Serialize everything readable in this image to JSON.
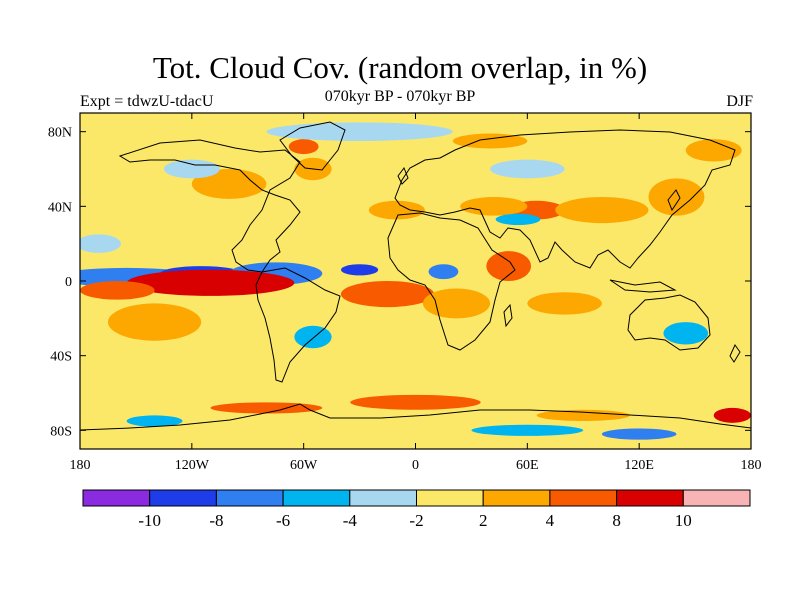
{
  "header": {
    "title": "Tot. Cloud Cov. (random overlap, in %)",
    "left": "Expt = tdwzU-tdacU",
    "center": "070kyr BP - 070kyr BP",
    "right": "DJF"
  },
  "chart_data": {
    "type": "heatmap",
    "projection": "cylindrical-equidistant",
    "x_range": [
      -180,
      180
    ],
    "y_range": [
      -90,
      90
    ],
    "x_ticks": [
      {
        "value": -180,
        "label": "180"
      },
      {
        "value": -120,
        "label": "120W"
      },
      {
        "value": -60,
        "label": "60W"
      },
      {
        "value": 0,
        "label": "0"
      },
      {
        "value": 60,
        "label": "60E"
      },
      {
        "value": 120,
        "label": "120E"
      },
      {
        "value": 180,
        "label": "180"
      }
    ],
    "y_ticks": [
      {
        "value": 80,
        "label": "80N"
      },
      {
        "value": 40,
        "label": "40N"
      },
      {
        "value": 0,
        "label": "0"
      },
      {
        "value": -40,
        "label": "40S"
      },
      {
        "value": -80,
        "label": "80S"
      }
    ],
    "colorbar": {
      "colors": [
        "#8a2be2",
        "#1e3ce8",
        "#2f7ff0",
        "#00b4f0",
        "#a8d8f0",
        "#fce868",
        "#fca800",
        "#f85a00",
        "#d80000",
        "#f8b4b4"
      ],
      "labels": [
        {
          "after_box": 1,
          "label": "-10"
        },
        {
          "after_box": 2,
          "label": "-8"
        },
        {
          "after_box": 3,
          "label": "-6"
        },
        {
          "after_box": 4,
          "label": "-4"
        },
        {
          "after_box": 5,
          "label": "-2"
        },
        {
          "after_box": 6,
          "label": "2"
        },
        {
          "after_box": 7,
          "label": "4"
        },
        {
          "after_box": 8,
          "label": "8"
        },
        {
          "after_box": 9,
          "label": "10"
        }
      ]
    },
    "background_level": 5,
    "anomalies": [
      {
        "lon": -155,
        "lat": 2,
        "rlon": 40,
        "rlat": 5,
        "level": 2
      },
      {
        "lon": -115,
        "lat": 4,
        "rlon": 22,
        "rlat": 4,
        "level": 1
      },
      {
        "lon": -75,
        "lat": 4,
        "rlon": 25,
        "rlat": 6,
        "level": 2
      },
      {
        "lon": -30,
        "lat": 6,
        "rlon": 10,
        "rlat": 3,
        "level": 1
      },
      {
        "lon": 15,
        "lat": 5,
        "rlon": 8,
        "rlat": 4,
        "level": 2
      },
      {
        "lon": -115,
        "lat": -2,
        "rlon": 30,
        "rlat": 3,
        "level": 9
      },
      {
        "lon": -110,
        "lat": -1,
        "rlon": 45,
        "rlat": 7,
        "level": 8
      },
      {
        "lon": -160,
        "lat": -5,
        "rlon": 20,
        "rlat": 5,
        "level": 7
      },
      {
        "lon": -15,
        "lat": -6,
        "rlon": 18,
        "rlat": 4,
        "level": 9
      },
      {
        "lon": -15,
        "lat": -7,
        "rlon": 25,
        "rlat": 7,
        "level": 7
      },
      {
        "lon": 22,
        "lat": -12,
        "rlon": 18,
        "rlat": 8,
        "level": 6
      },
      {
        "lon": 80,
        "lat": -12,
        "rlon": 20,
        "rlat": 6,
        "level": 6
      },
      {
        "lon": -140,
        "lat": -22,
        "rlon": 25,
        "rlat": 10,
        "level": 6
      },
      {
        "lon": 50,
        "lat": 8,
        "rlon": 12,
        "rlat": 8,
        "level": 7
      },
      {
        "lon": 65,
        "lat": 38,
        "rlon": 15,
        "rlat": 5,
        "level": 7
      },
      {
        "lon": 42,
        "lat": 40,
        "rlon": 18,
        "rlat": 5,
        "level": 6
      },
      {
        "lon": 55,
        "lat": 33,
        "rlon": 12,
        "rlat": 3,
        "level": 3
      },
      {
        "lon": 100,
        "lat": 38,
        "rlon": 25,
        "rlat": 7,
        "level": 6
      },
      {
        "lon": 140,
        "lat": 45,
        "rlon": 15,
        "rlat": 10,
        "level": 6
      },
      {
        "lon": -100,
        "lat": 52,
        "rlon": 20,
        "rlat": 8,
        "level": 6
      },
      {
        "lon": -10,
        "lat": 38,
        "rlon": 15,
        "rlat": 5,
        "level": 6
      },
      {
        "lon": -55,
        "lat": 60,
        "rlon": 10,
        "rlat": 6,
        "level": 6
      },
      {
        "lon": -60,
        "lat": 72,
        "rlon": 8,
        "rlat": 4,
        "level": 7
      },
      {
        "lon": 145,
        "lat": -28,
        "rlon": 12,
        "rlat": 6,
        "level": 3
      },
      {
        "lon": -55,
        "lat": -30,
        "rlon": 10,
        "rlat": 6,
        "level": 3
      },
      {
        "lon": -170,
        "lat": 20,
        "rlon": 12,
        "rlat": 5,
        "level": 4
      },
      {
        "lon": -120,
        "lat": 60,
        "rlon": 15,
        "rlat": 5,
        "level": 4
      },
      {
        "lon": 60,
        "lat": 60,
        "rlon": 20,
        "rlat": 5,
        "level": 4
      },
      {
        "lon": 0,
        "lat": -65,
        "rlon": 35,
        "rlat": 4,
        "level": 7
      },
      {
        "lon": -80,
        "lat": -68,
        "rlon": 30,
        "rlat": 3,
        "level": 7
      },
      {
        "lon": 170,
        "lat": -72,
        "rlon": 10,
        "rlat": 4,
        "level": 8
      },
      {
        "lon": 90,
        "lat": -72,
        "rlon": 25,
        "rlat": 3,
        "level": 6
      },
      {
        "lon": -140,
        "lat": -75,
        "rlon": 15,
        "rlat": 3,
        "level": 3
      },
      {
        "lon": 60,
        "lat": -80,
        "rlon": 30,
        "rlat": 3,
        "level": 3
      },
      {
        "lon": 120,
        "lat": -82,
        "rlon": 20,
        "rlat": 3,
        "level": 2
      },
      {
        "lon": -30,
        "lat": 80,
        "rlon": 50,
        "rlat": 5,
        "level": 4
      },
      {
        "lon": 40,
        "lat": 75,
        "rlon": 20,
        "rlat": 4,
        "level": 6
      },
      {
        "lon": 160,
        "lat": 70,
        "rlon": 15,
        "rlat": 6,
        "level": 6
      }
    ]
  }
}
